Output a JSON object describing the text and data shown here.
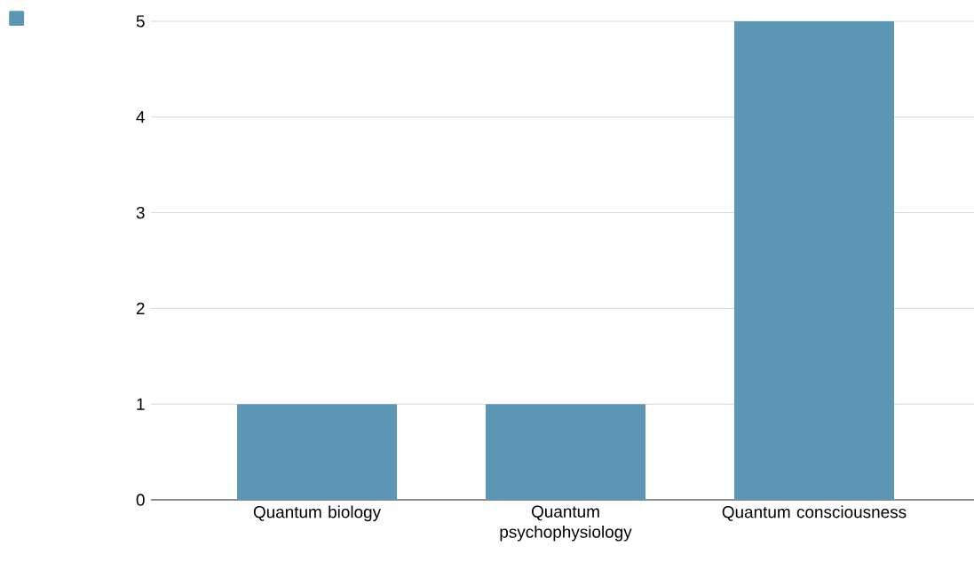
{
  "chart_data": {
    "type": "bar",
    "categories": [
      "Quantum biology",
      "Quantum psychophysiology",
      "Quantum consciousness"
    ],
    "values": [
      1,
      1,
      5
    ],
    "color": "#5b96b4",
    "ylim": [
      0,
      5
    ],
    "yticks": [
      0,
      1,
      2,
      3,
      4,
      5
    ],
    "grid": "y"
  }
}
